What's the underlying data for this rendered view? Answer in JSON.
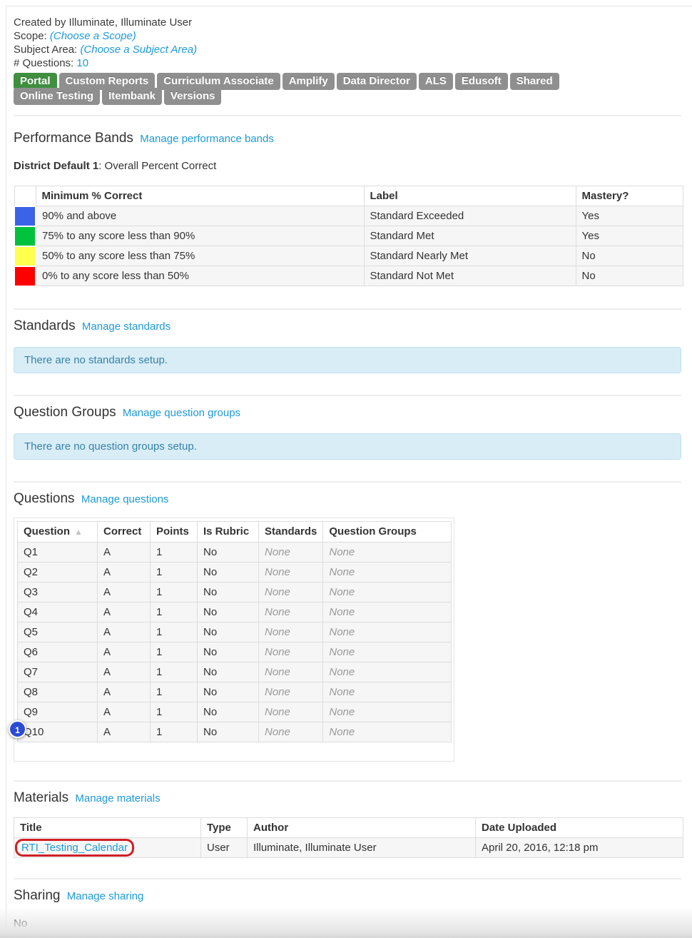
{
  "header": {
    "created_by": "Created by Illuminate, Illuminate User",
    "scope_label": "Scope:",
    "scope_value": "(Choose a Scope)",
    "subject_label": "Subject Area:",
    "subject_value": "(Choose a Subject Area)",
    "num_questions_label": "# Questions:",
    "num_questions_value": "10"
  },
  "tabs": {
    "rows": [
      [
        {
          "label": "Portal",
          "active": true
        },
        {
          "label": "Custom Reports",
          "active": false
        },
        {
          "label": "Curriculum Associate",
          "active": false
        },
        {
          "label": "Amplify",
          "active": false
        },
        {
          "label": "Data Director",
          "active": false
        },
        {
          "label": "ALS",
          "active": false
        },
        {
          "label": "Edusoft",
          "active": false
        },
        {
          "label": "Shared",
          "active": false
        }
      ],
      [
        {
          "label": "Online Testing",
          "active": false
        },
        {
          "label": "Itembank",
          "active": false
        },
        {
          "label": "Versions",
          "active": false
        }
      ]
    ]
  },
  "performance_bands": {
    "heading": "Performance Bands",
    "manage_link": "Manage performance bands",
    "band_set_name": "District Default 1",
    "band_set_desc": ": Overall Percent Correct",
    "columns": [
      "",
      "Minimum % Correct",
      "Label",
      "Mastery?"
    ],
    "rows": [
      {
        "color": "#3b63e8",
        "range": "90% and above",
        "label": "Standard Exceeded",
        "mastery": "Yes"
      },
      {
        "color": "#00c23c",
        "range": "75% to any score less than 90%",
        "label": "Standard Met",
        "mastery": "Yes"
      },
      {
        "color": "#ffff4d",
        "range": "50% to any score less than 75%",
        "label": "Standard Nearly Met",
        "mastery": "No"
      },
      {
        "color": "#ff0000",
        "range": "0% to any score less than 50%",
        "label": "Standard Not Met",
        "mastery": "No"
      }
    ]
  },
  "standards": {
    "heading": "Standards",
    "manage_link": "Manage standards",
    "empty_message": "There are no standards setup."
  },
  "question_groups": {
    "heading": "Question Groups",
    "manage_link": "Manage question groups",
    "empty_message": "There are no question groups setup."
  },
  "questions": {
    "heading": "Questions",
    "manage_link": "Manage questions",
    "columns": [
      "Question",
      "Correct",
      "Points",
      "Is Rubric",
      "Standards",
      "Question Groups"
    ],
    "sort_icon": "▲",
    "badge_label": "1",
    "rows": [
      {
        "question": "Q1",
        "correct": "A",
        "points": "1",
        "is_rubric": "No",
        "standards": "None",
        "question_groups": "None"
      },
      {
        "question": "Q2",
        "correct": "A",
        "points": "1",
        "is_rubric": "No",
        "standards": "None",
        "question_groups": "None"
      },
      {
        "question": "Q3",
        "correct": "A",
        "points": "1",
        "is_rubric": "No",
        "standards": "None",
        "question_groups": "None"
      },
      {
        "question": "Q4",
        "correct": "A",
        "points": "1",
        "is_rubric": "No",
        "standards": "None",
        "question_groups": "None"
      },
      {
        "question": "Q5",
        "correct": "A",
        "points": "1",
        "is_rubric": "No",
        "standards": "None",
        "question_groups": "None"
      },
      {
        "question": "Q6",
        "correct": "A",
        "points": "1",
        "is_rubric": "No",
        "standards": "None",
        "question_groups": "None"
      },
      {
        "question": "Q7",
        "correct": "A",
        "points": "1",
        "is_rubric": "No",
        "standards": "None",
        "question_groups": "None"
      },
      {
        "question": "Q8",
        "correct": "A",
        "points": "1",
        "is_rubric": "No",
        "standards": "None",
        "question_groups": "None"
      },
      {
        "question": "Q9",
        "correct": "A",
        "points": "1",
        "is_rubric": "No",
        "standards": "None",
        "question_groups": "None"
      },
      {
        "question": "Q10",
        "correct": "A",
        "points": "1",
        "is_rubric": "No",
        "standards": "None",
        "question_groups": "None"
      }
    ]
  },
  "materials": {
    "heading": "Materials",
    "manage_link": "Manage materials",
    "columns": [
      "Title",
      "Type",
      "Author",
      "Date Uploaded"
    ],
    "rows": [
      {
        "title": "RTI_Testing_Calendar",
        "type": "User",
        "author": "Illuminate, Illuminate User",
        "date_uploaded": "April 20, 2016, 12:18 pm",
        "title_annotated": true
      }
    ]
  },
  "sharing": {
    "heading": "Sharing",
    "manage_link": "Manage sharing",
    "value": "No"
  },
  "colors": {
    "link_blue": "#1e9ad7",
    "tab_gray": "#8f8f8f",
    "tab_active_green": "#3f8f3f",
    "alert_bg": "#d9edf7",
    "alert_text": "#3482a8",
    "badge_blue": "#2b4bd3",
    "annotation_red": "#d11f26"
  }
}
